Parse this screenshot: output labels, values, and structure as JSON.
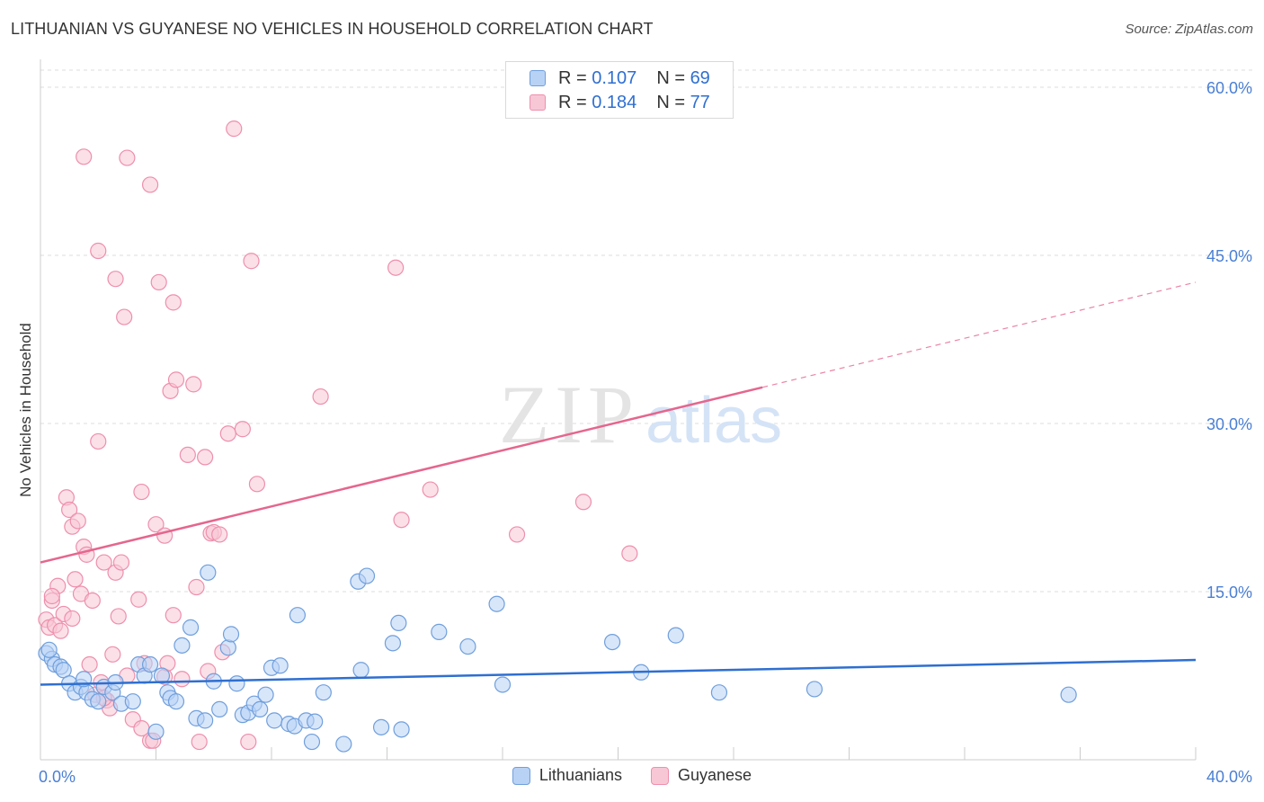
{
  "header": {
    "title": "LITHUANIAN VS GUYANESE NO VEHICLES IN HOUSEHOLD CORRELATION CHART",
    "source": "Source: ZipAtlas.com"
  },
  "legend_top": {
    "rows": [
      {
        "r_label": "R = ",
        "r_value": "0.107",
        "n_label": "N = ",
        "n_value": "69"
      },
      {
        "r_label": "R = ",
        "r_value": "0.184",
        "n_label": "N = ",
        "n_value": "77"
      }
    ]
  },
  "legend_bottom": [
    "Lithuanians",
    "Guyanese"
  ],
  "watermark": {
    "zip": "ZIP",
    "atlas": "atlas"
  },
  "colors": {
    "lithuanians_fill": "#b8d2f5",
    "lithuanians_stroke": "#6f9fdc",
    "lithuanians_line": "#2f6fd0",
    "guyanese_fill": "#f8c7d6",
    "guyanese_stroke": "#ee8fac",
    "guyanese_line": "#e5668e",
    "tick_text": "#4a7fd4",
    "grid": "#dddddd"
  },
  "chart_data": {
    "type": "scatter",
    "title": "LITHUANIAN VS GUYANESE NO VEHICLES IN HOUSEHOLD CORRELATION CHART",
    "xlabel": "",
    "ylabel": "No Vehicles in Household",
    "xlim": [
      0,
      40
    ],
    "ylim": [
      0,
      60
    ],
    "x_tick_labels": [
      "0.0%",
      "40.0%"
    ],
    "y_ticks": [
      15,
      30,
      45,
      60
    ],
    "y_tick_labels": [
      "15.0%",
      "30.0%",
      "45.0%",
      "60.0%"
    ],
    "grid": true,
    "legend_position": "top-center",
    "series": [
      {
        "name": "Lithuanians",
        "R": 0.107,
        "N": 69,
        "trend": {
          "x": [
            0,
            40
          ],
          "y": [
            6.7,
            8.9
          ],
          "dashed_from": null
        },
        "points": [
          [
            0.2,
            9.5
          ],
          [
            0.4,
            9.0
          ],
          [
            0.5,
            8.5
          ],
          [
            0.7,
            8.3
          ],
          [
            0.8,
            8.0
          ],
          [
            1.0,
            6.8
          ],
          [
            1.2,
            6.0
          ],
          [
            1.4,
            6.5
          ],
          [
            1.6,
            6.0
          ],
          [
            1.8,
            5.4
          ],
          [
            2.0,
            5.2
          ],
          [
            2.2,
            6.5
          ],
          [
            2.5,
            6.0
          ],
          [
            2.8,
            5.0
          ],
          [
            3.2,
            5.2
          ],
          [
            3.4,
            8.5
          ],
          [
            3.6,
            7.5
          ],
          [
            3.8,
            8.5
          ],
          [
            4.0,
            2.5
          ],
          [
            4.2,
            7.5
          ],
          [
            4.4,
            6.0
          ],
          [
            4.5,
            5.5
          ],
          [
            4.7,
            5.2
          ],
          [
            4.9,
            10.2
          ],
          [
            5.2,
            11.8
          ],
          [
            5.4,
            3.7
          ],
          [
            5.7,
            3.5
          ],
          [
            5.8,
            16.7
          ],
          [
            6.0,
            7.0
          ],
          [
            6.2,
            4.5
          ],
          [
            6.5,
            10.0
          ],
          [
            6.6,
            11.2
          ],
          [
            6.8,
            6.8
          ],
          [
            7.0,
            4.0
          ],
          [
            7.2,
            4.2
          ],
          [
            7.4,
            5.0
          ],
          [
            7.6,
            4.5
          ],
          [
            7.8,
            5.8
          ],
          [
            8.0,
            8.2
          ],
          [
            8.1,
            3.5
          ],
          [
            8.3,
            8.4
          ],
          [
            8.6,
            3.2
          ],
          [
            8.8,
            3.0
          ],
          [
            8.9,
            12.9
          ],
          [
            9.2,
            3.5
          ],
          [
            9.4,
            1.6
          ],
          [
            9.5,
            3.4
          ],
          [
            9.8,
            6.0
          ],
          [
            10.5,
            1.4
          ],
          [
            11.1,
            8.0
          ],
          [
            11.0,
            15.9
          ],
          [
            11.3,
            16.4
          ],
          [
            11.8,
            2.9
          ],
          [
            12.2,
            10.4
          ],
          [
            12.4,
            12.2
          ],
          [
            12.5,
            2.7
          ],
          [
            13.8,
            11.4
          ],
          [
            14.8,
            10.1
          ],
          [
            15.8,
            13.9
          ],
          [
            16.0,
            6.7
          ],
          [
            19.8,
            10.5
          ],
          [
            20.8,
            7.8
          ],
          [
            22.0,
            11.1
          ],
          [
            23.5,
            6.0
          ],
          [
            26.8,
            6.3
          ],
          [
            35.6,
            5.8
          ],
          [
            0.3,
            9.8
          ],
          [
            1.5,
            7.2
          ],
          [
            2.6,
            6.9
          ]
        ]
      },
      {
        "name": "Guyanese",
        "R": 0.184,
        "N": 77,
        "trend": {
          "x": [
            0,
            40
          ],
          "y": [
            17.6,
            42.6
          ],
          "dashed_from": 25.0
        },
        "points": [
          [
            0.2,
            12.5
          ],
          [
            0.3,
            11.8
          ],
          [
            0.4,
            14.2
          ],
          [
            0.5,
            12.0
          ],
          [
            0.6,
            15.5
          ],
          [
            0.7,
            11.5
          ],
          [
            0.8,
            13.0
          ],
          [
            0.9,
            23.4
          ],
          [
            1.0,
            22.3
          ],
          [
            1.1,
            20.8
          ],
          [
            1.2,
            16.1
          ],
          [
            1.3,
            21.3
          ],
          [
            1.4,
            14.8
          ],
          [
            1.5,
            19.0
          ],
          [
            1.6,
            18.3
          ],
          [
            1.7,
            8.5
          ],
          [
            1.8,
            14.2
          ],
          [
            1.9,
            5.8
          ],
          [
            2.0,
            28.4
          ],
          [
            2.1,
            6.9
          ],
          [
            2.2,
            17.6
          ],
          [
            2.3,
            5.3
          ],
          [
            2.4,
            4.6
          ],
          [
            2.5,
            9.4
          ],
          [
            2.6,
            16.7
          ],
          [
            2.7,
            12.8
          ],
          [
            2.8,
            17.6
          ],
          [
            2.9,
            39.5
          ],
          [
            3.0,
            7.5
          ],
          [
            3.2,
            3.6
          ],
          [
            3.4,
            14.3
          ],
          [
            3.5,
            23.9
          ],
          [
            3.6,
            8.6
          ],
          [
            3.8,
            1.7
          ],
          [
            3.9,
            1.7
          ],
          [
            4.0,
            21.0
          ],
          [
            4.1,
            42.6
          ],
          [
            4.3,
            7.4
          ],
          [
            4.3,
            20.0
          ],
          [
            4.4,
            8.6
          ],
          [
            4.5,
            32.9
          ],
          [
            4.6,
            40.8
          ],
          [
            4.7,
            33.9
          ],
          [
            4.9,
            7.2
          ],
          [
            5.1,
            27.2
          ],
          [
            5.3,
            33.5
          ],
          [
            5.4,
            15.4
          ],
          [
            5.5,
            1.6
          ],
          [
            5.7,
            27.0
          ],
          [
            5.8,
            7.9
          ],
          [
            5.9,
            20.2
          ],
          [
            6.0,
            20.3
          ],
          [
            6.2,
            20.1
          ],
          [
            6.3,
            9.6
          ],
          [
            6.5,
            29.1
          ],
          [
            6.7,
            56.3
          ],
          [
            7.0,
            29.5
          ],
          [
            7.2,
            1.6
          ],
          [
            7.3,
            44.5
          ],
          [
            7.5,
            24.6
          ],
          [
            9.7,
            32.4
          ],
          [
            12.3,
            43.9
          ],
          [
            12.5,
            21.4
          ],
          [
            13.5,
            24.1
          ],
          [
            16.5,
            20.1
          ],
          [
            18.8,
            23.0
          ],
          [
            20.4,
            18.4
          ],
          [
            1.5,
            53.8
          ],
          [
            3.0,
            53.7
          ],
          [
            3.8,
            51.3
          ],
          [
            2.0,
            45.4
          ],
          [
            2.6,
            42.9
          ],
          [
            0.4,
            14.6
          ],
          [
            1.1,
            12.6
          ],
          [
            2.2,
            5.5
          ],
          [
            3.5,
            2.8
          ],
          [
            4.6,
            12.9
          ]
        ]
      }
    ]
  }
}
